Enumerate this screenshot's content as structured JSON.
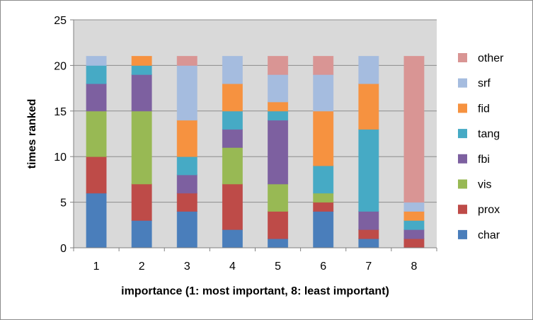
{
  "chart_data": {
    "type": "bar",
    "stacked": true,
    "title": "",
    "xlabel": "importance (1: most important, 8: least important)",
    "ylabel": "times ranked",
    "ylim": [
      0,
      25
    ],
    "yticks": [
      0,
      5,
      10,
      15,
      20,
      25
    ],
    "grid": "horizontal",
    "legend_position": "right",
    "categories": [
      "1",
      "2",
      "3",
      "4",
      "5",
      "6",
      "7",
      "8"
    ],
    "series": [
      {
        "name": "char",
        "color": "#4a7ebb",
        "values": [
          6,
          3,
          4,
          2,
          1,
          4,
          1,
          0
        ]
      },
      {
        "name": "prox",
        "color": "#be4b48",
        "values": [
          4,
          4,
          2,
          5,
          3,
          1,
          1,
          1
        ]
      },
      {
        "name": "vis",
        "color": "#98b954",
        "values": [
          5,
          8,
          0,
          4,
          3,
          1,
          0,
          0
        ]
      },
      {
        "name": "fbi",
        "color": "#7d60a0",
        "values": [
          3,
          4,
          2,
          2,
          7,
          0,
          2,
          1
        ]
      },
      {
        "name": "tang",
        "color": "#46aac5",
        "values": [
          2,
          1,
          2,
          2,
          1,
          3,
          9,
          1
        ]
      },
      {
        "name": "fid",
        "color": "#f69240",
        "values": [
          0,
          1,
          4,
          3,
          1,
          6,
          5,
          1
        ]
      },
      {
        "name": "srf",
        "color": "#a5bcdf",
        "values": [
          1,
          0,
          6,
          3,
          3,
          4,
          3,
          1
        ]
      },
      {
        "name": "other",
        "color": "#d99594",
        "values": [
          0,
          0,
          1,
          0,
          2,
          2,
          0,
          16
        ]
      }
    ]
  }
}
